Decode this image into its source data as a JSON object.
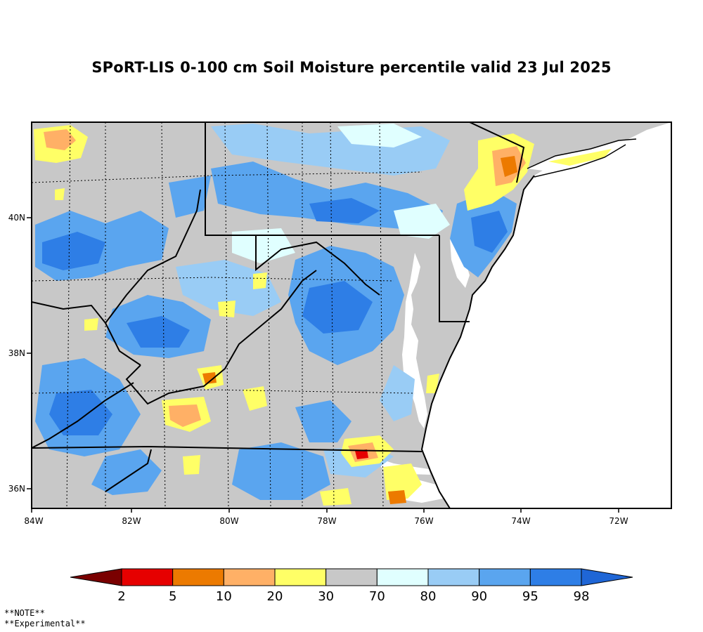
{
  "title": "SPoRT-LIS 0-100 cm Soil Moisture percentile valid 23 Jul 2025",
  "map": {
    "lat_labels": [
      "40N",
      "38N",
      "36N"
    ],
    "lon_labels": [
      "84W",
      "82W",
      "80W",
      "78W",
      "76W",
      "74W",
      "72W"
    ],
    "extent": {
      "lon": [
        -84,
        -71.1
      ],
      "lat": [
        35.7,
        41.4
      ]
    },
    "land_background_color": "#c8c8c8",
    "ocean_color": "#ffffff"
  },
  "colorbar": {
    "labels": [
      "2",
      "5",
      "10",
      "20",
      "30",
      "70",
      "80",
      "90",
      "95",
      "98"
    ],
    "colors": [
      "#7a0000",
      "#e60000",
      "#ec7a00",
      "#ffb066",
      "#ffff66",
      "#c8c8c8",
      "#e0ffff",
      "#99ccf5",
      "#5aa5ef",
      "#2e7ee6",
      "#1f66d6"
    ]
  },
  "note_lines": [
    "**NOTE**",
    "**Experimental**"
  ]
}
